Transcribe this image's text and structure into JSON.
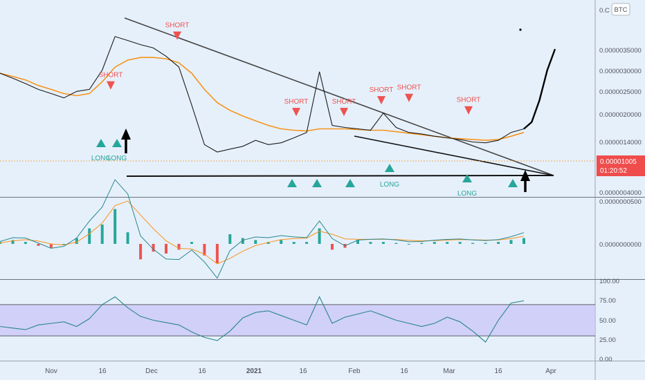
{
  "colors": {
    "background": "#e6f0fb",
    "price_line": "#1a1a1a",
    "ma_orange": "#f7931a",
    "short_red": "#ef5350",
    "long_green": "#26a69a",
    "rsi_line": "#26868a",
    "rsi_band": "#c9c5f7",
    "macd_pos": "#26a69a",
    "macd_neg": "#ef5350",
    "last_price_box": "#ef4c4c"
  },
  "chart_data": [
    {
      "type": "line",
      "pane": "price",
      "currency_label": "BTC",
      "y_scale": "log",
      "y_ticks": [
        "0.0000035000",
        "0.0000030000",
        "0.0000025000",
        "0.0000020000",
        "0.0000014000",
        "0.0000004000"
      ],
      "top_tick_partial": "0.C",
      "last_price": {
        "value": "0.00001005",
        "countdown": "01:20:52"
      },
      "x_ticks": [
        "Nov",
        "16",
        "Dec",
        "16",
        "2021",
        "16",
        "Feb",
        "16",
        "Mar",
        "16",
        "Apr"
      ],
      "series": [
        {
          "values": [
            2.2,
            2.05,
            1.9,
            1.75,
            1.65,
            1.55,
            1.7,
            1.75,
            2.3,
            3.7,
            3.5,
            3.3,
            3.15,
            2.8,
            2.4,
            1.4,
            0.8,
            0.72,
            0.75,
            0.78,
            0.85,
            0.8,
            0.82,
            0.88,
            0.95,
            2.25,
            1.05,
            1.02,
            1.0,
            0.98,
            1.25,
            1.02,
            0.95,
            0.93,
            0.9,
            0.88,
            0.86,
            0.83,
            0.82,
            0.85,
            0.95,
            1.0
          ]
        },
        {
          "values": [
            2.2,
            2.1,
            2.0,
            1.85,
            1.75,
            1.65,
            1.6,
            1.65,
            1.95,
            2.4,
            2.65,
            2.75,
            2.75,
            2.7,
            2.55,
            2.2,
            1.75,
            1.45,
            1.3,
            1.2,
            1.12,
            1.05,
            1.0,
            0.98,
            0.97,
            1.0,
            1.0,
            1.0,
            0.99,
            0.98,
            0.98,
            0.96,
            0.94,
            0.92,
            0.9,
            0.88,
            0.87,
            0.86,
            0.85,
            0.86,
            0.9,
            0.95
          ]
        }
      ],
      "projection": {
        "values": [
          1.0,
          1.1,
          1.5,
          2.3,
          3.1
        ]
      },
      "signals": {
        "short": [
          {
            "label": "SHORT",
            "value": 1.85
          },
          {
            "label": "SHORT",
            "value": 3.75
          },
          {
            "label": "SHORT",
            "value": 1.27
          },
          {
            "label": "SHORT",
            "value": 1.27
          },
          {
            "label": "SHORT",
            "value": 1.5
          },
          {
            "label": "SHORT",
            "value": 1.55
          },
          {
            "label": "SHORT",
            "value": 1.3
          }
        ],
        "long": [
          {
            "label": "LONG",
            "value": 0.92
          },
          {
            "label": "LONG",
            "value": 0.92
          },
          {
            "label": "",
            "value": 0.45
          },
          {
            "label": "",
            "value": 0.45
          },
          {
            "label": "",
            "value": 0.45
          },
          {
            "label": "LONG",
            "value": 0.6
          },
          {
            "label": "LONG",
            "value": 0.45
          },
          {
            "label": "",
            "value": 0.45
          }
        ]
      }
    },
    {
      "type": "bar",
      "pane": "macd",
      "y_ticks": [
        "0.0000000500",
        "0.0000000000"
      ],
      "histogram": [
        0.1,
        0.2,
        0.1,
        -0.1,
        -0.2,
        0.0,
        0.3,
        0.8,
        1.0,
        1.8,
        0.6,
        -0.8,
        -0.4,
        -0.5,
        -0.3,
        0.1,
        -0.6,
        -1.0,
        0.5,
        0.3,
        0.2,
        0.1,
        0.2,
        0.1,
        0.1,
        0.8,
        -0.3,
        -0.2,
        0.2,
        0.1,
        0.1,
        0.05,
        0.0,
        0.05,
        0.1,
        0.1,
        0.1,
        0.05,
        0.05,
        0.1,
        0.2,
        0.3
      ]
    },
    {
      "type": "line",
      "pane": "rsi",
      "y_ticks": [
        "100.00",
        "75.00",
        "50.00",
        "25.00",
        "0.00"
      ],
      "band": [
        30,
        70
      ],
      "values": [
        42,
        40,
        38,
        44,
        46,
        48,
        42,
        52,
        70,
        80,
        66,
        55,
        50,
        47,
        44,
        35,
        28,
        24,
        36,
        53,
        60,
        62,
        56,
        50,
        44,
        80,
        46,
        54,
        58,
        62,
        56,
        50,
        46,
        42,
        46,
        54,
        48,
        36,
        22,
        50,
        72,
        75
      ]
    }
  ]
}
